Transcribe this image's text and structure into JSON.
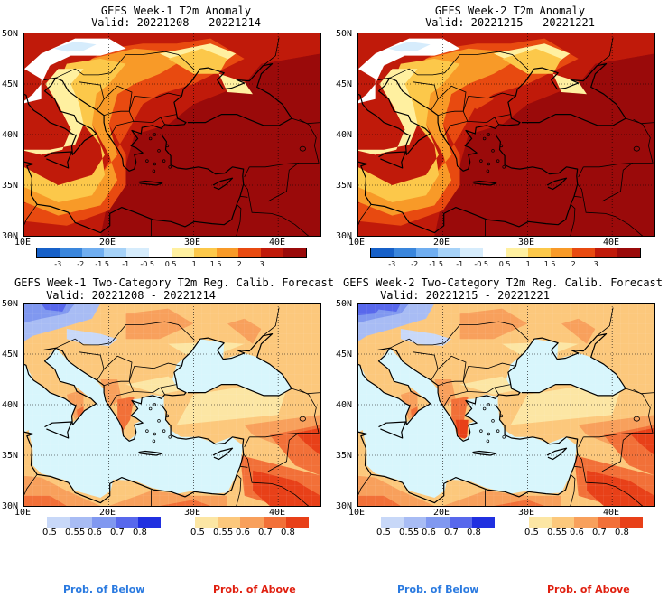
{
  "panels": [
    {
      "title_line1": "GEFS Week-1 T2m Anomaly",
      "title_line2": "Valid: 20221208 - 20221214"
    },
    {
      "title_line1": "GEFS Week-2 T2m Anomaly",
      "title_line2": "Valid: 20221215 - 20221221"
    },
    {
      "title_line1": "GEFS Week-1 Two-Category T2m Reg. Calib. Forecast",
      "title_line2": "Valid: 20221208 - 20221214"
    },
    {
      "title_line1": "GEFS Week-2 Two-Category T2m Reg. Calib. Forecast",
      "title_line2": "Valid: 20221215 - 20221221"
    }
  ],
  "map_axes": {
    "lat_labels": [
      "50N",
      "45N",
      "40N",
      "35N",
      "30N"
    ],
    "lon_labels": [
      "10E",
      "20E",
      "30E",
      "40E"
    ]
  },
  "anomaly_colorbar": {
    "labels": [
      "-3",
      "-2",
      "-1.5",
      "-1",
      "-0.5",
      "0.5",
      "1",
      "1.5",
      "2",
      "3"
    ],
    "colors": [
      "#1660c8",
      "#3a86dc",
      "#70aef0",
      "#a6d2f8",
      "#d6ecfc",
      "#ffffff",
      "#fff0a0",
      "#fcc84a",
      "#f89a28",
      "#e84a10",
      "#c01a0a",
      "#9a0a0a"
    ]
  },
  "prob_colorbars": {
    "below_labels": [
      "0.5",
      "0.55",
      "0.6",
      "0.7",
      "0.8"
    ],
    "below_colors": [
      "#c8d8f8",
      "#a8bcf4",
      "#8098f0",
      "#5868ec",
      "#2030e0"
    ],
    "above_labels": [
      "0.5",
      "0.55",
      "0.6",
      "0.7",
      "0.8"
    ],
    "above_colors": [
      "#fce6a4",
      "#fcc87c",
      "#f8a05c",
      "#f27038",
      "#e84018"
    ]
  },
  "legend": {
    "below_text": "Prob. of Below",
    "above_text": "Prob. of Above",
    "below_color": "#2a7ae0",
    "above_color": "#e02010"
  },
  "map_colors": {
    "sea_prob": "#d8f6fc",
    "neutral": "#ffffff",
    "coast": "#000000"
  }
}
